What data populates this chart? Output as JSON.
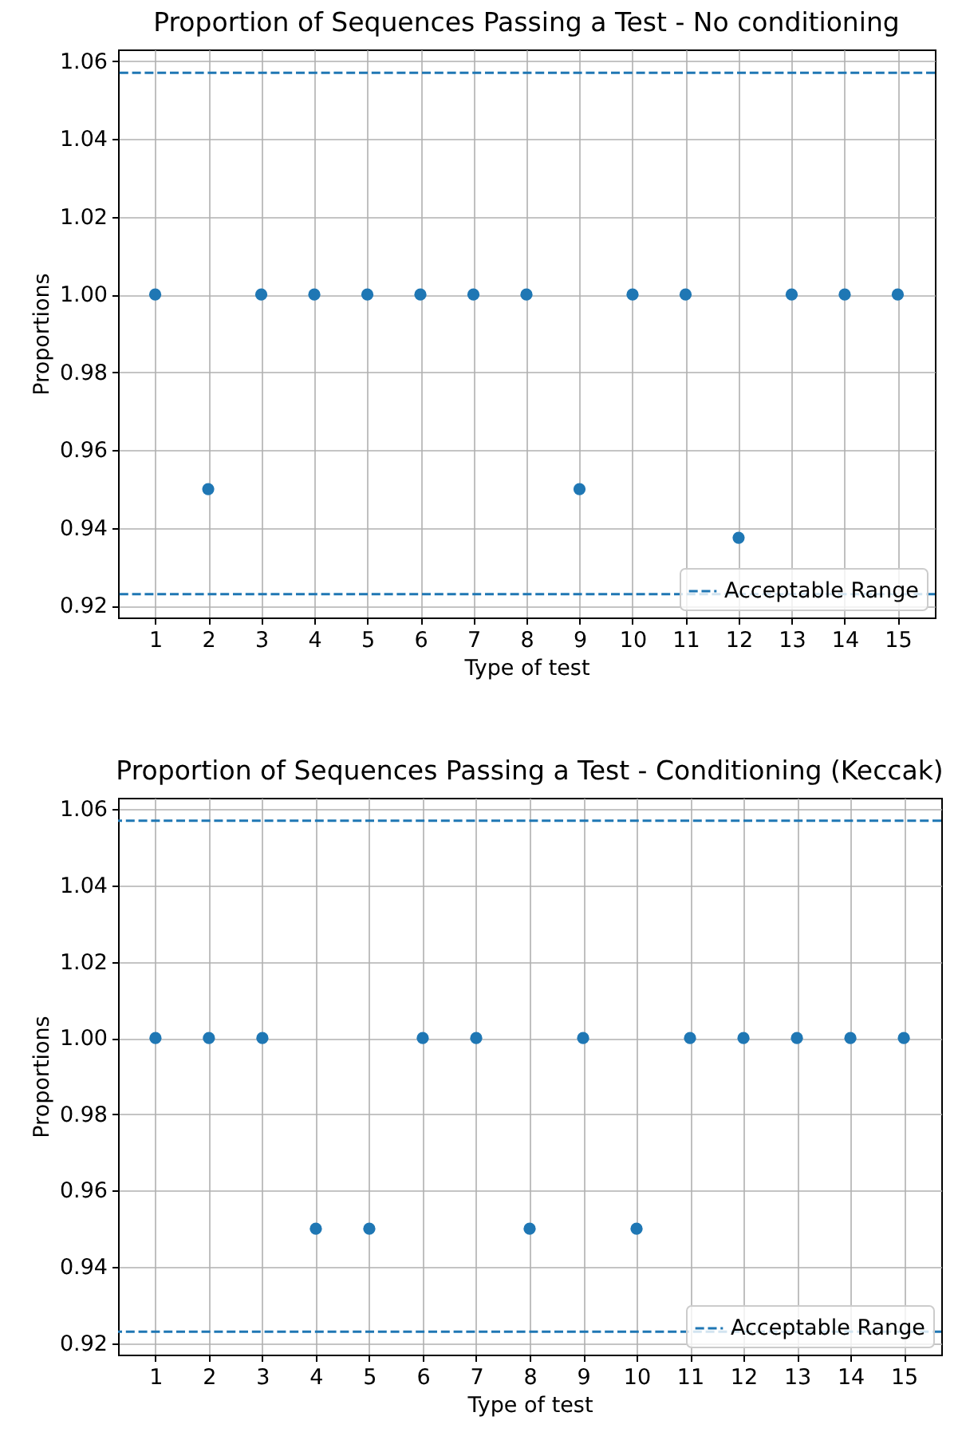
{
  "chart_data": [
    {
      "type": "scatter",
      "title": "Proportion of Sequences Passing a Test - No conditioning",
      "xlabel": "Type of test",
      "ylabel": "Proportions",
      "x": [
        1,
        2,
        3,
        4,
        5,
        6,
        7,
        8,
        9,
        10,
        11,
        12,
        13,
        14,
        15
      ],
      "values": [
        1,
        0.95,
        1,
        1,
        1,
        1,
        1,
        1,
        0.95,
        1,
        1,
        0.9375,
        1,
        1,
        1
      ],
      "color": "#1f77b4",
      "marker": "circle",
      "xlim": [
        0.3,
        15.7
      ],
      "xticks": [
        1,
        2,
        3,
        4,
        5,
        6,
        7,
        8,
        9,
        10,
        11,
        12,
        13,
        14,
        15
      ],
      "ylim": [
        0.917,
        1.063
      ],
      "yticks": [
        0.92,
        0.94,
        0.96,
        0.98,
        {
          "value": 1,
          "label": "1.00"
        },
        1.02,
        1.04,
        1.06
      ],
      "grid": true,
      "legend": "bottom right",
      "ref_lines": [
        {
          "axis": "y",
          "value": 0.923,
          "label": "Acceptable Range",
          "color": "#1f77b4",
          "line_style": "dashed"
        },
        {
          "axis": "y",
          "value": 1.057,
          "color": "#1f77b4",
          "line_style": "dashed"
        }
      ]
    },
    {
      "type": "scatter",
      "title": "Proportion of Sequences Passing a Test - Conditioning (Keccak)",
      "xlabel": "Type of test",
      "ylabel": "Proportions",
      "x": [
        1,
        2,
        3,
        4,
        5,
        6,
        7,
        8,
        9,
        10,
        11,
        12,
        13,
        14,
        15
      ],
      "values": [
        1,
        1,
        1,
        0.95,
        0.95,
        1,
        1,
        0.95,
        1,
        0.95,
        1,
        1,
        1,
        1,
        1
      ],
      "color": "#1f77b4",
      "marker": "circle",
      "xlim": [
        0.3,
        15.7
      ],
      "xticks": [
        1,
        2,
        3,
        4,
        5,
        6,
        7,
        8,
        9,
        10,
        11,
        12,
        13,
        14,
        15
      ],
      "ylim": [
        0.917,
        1.063
      ],
      "yticks": [
        0.92,
        0.94,
        0.96,
        0.98,
        {
          "value": 1,
          "label": "1.00"
        },
        1.02,
        1.04,
        1.06
      ],
      "grid": true,
      "legend": "bottom right",
      "ref_lines": [
        {
          "axis": "y",
          "value": 0.923,
          "label": "Acceptable Range",
          "color": "#1f77b4",
          "line_style": "dashed"
        },
        {
          "axis": "y",
          "value": 1.057,
          "color": "#1f77b4",
          "line_style": "dashed"
        }
      ]
    }
  ]
}
